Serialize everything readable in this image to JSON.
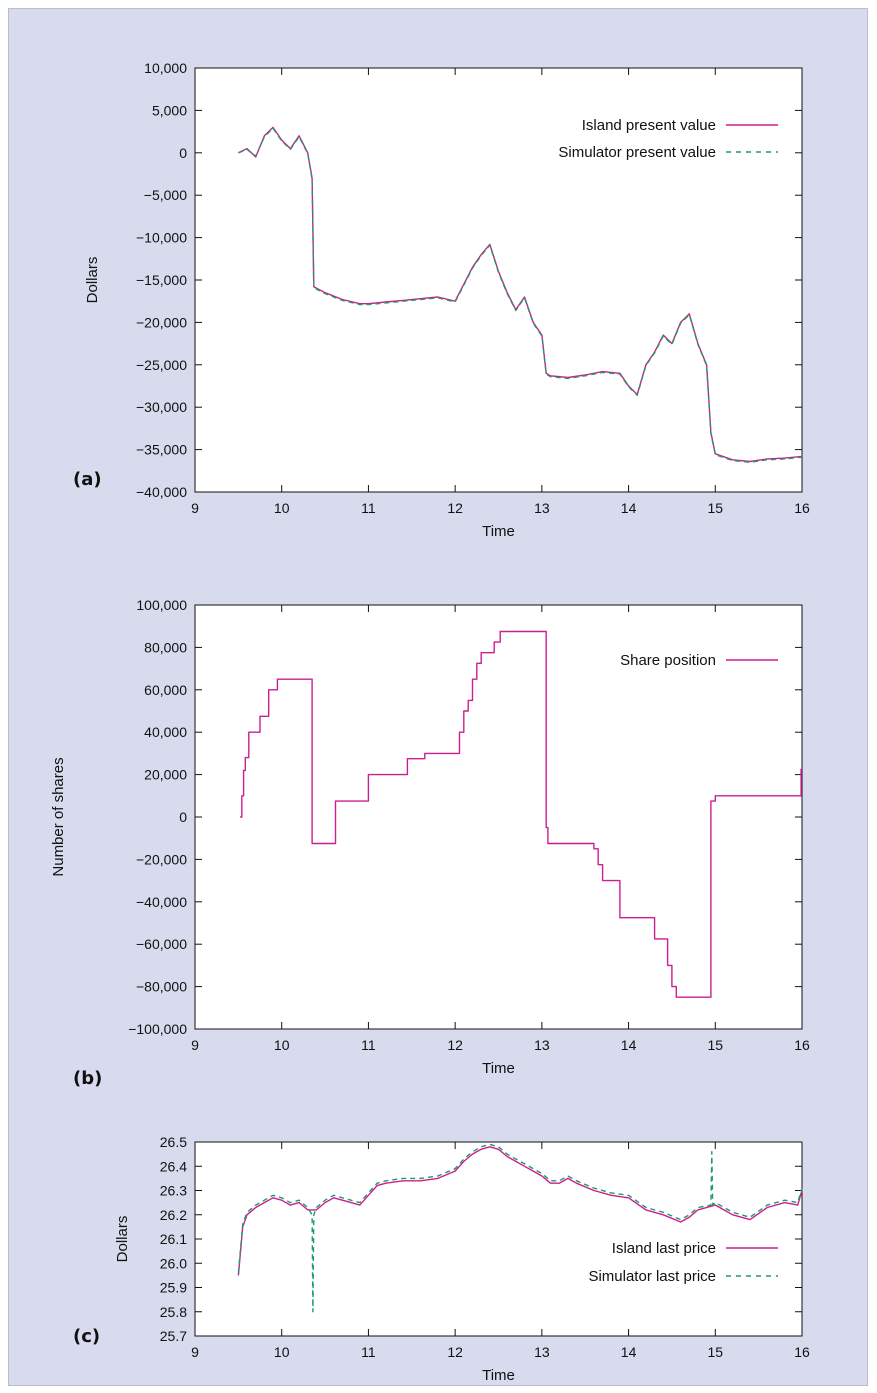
{
  "colors": {
    "island": "#cc1f8f",
    "simulator": "#1f9a6a",
    "frame_bg": "#d8dbee"
  },
  "panels": [
    {
      "letter": "(a)"
    },
    {
      "letter": "(b)"
    },
    {
      "letter": "(c)"
    }
  ],
  "chart_data": [
    {
      "type": "line",
      "title": "",
      "xlabel": "Time",
      "ylabel": "Dollars",
      "xlim": [
        9,
        16
      ],
      "ylim": [
        -40000,
        10000
      ],
      "xticks": [
        9,
        10,
        11,
        12,
        13,
        14,
        15,
        16
      ],
      "xtick_labels": [
        "9",
        "10",
        "11",
        "12",
        "13",
        "14",
        "15",
        "16"
      ],
      "yticks": [
        10000,
        5000,
        0,
        -5000,
        -10000,
        -15000,
        -20000,
        -25000,
        -30000,
        -35000,
        -40000
      ],
      "ytick_labels": [
        "10,000",
        "5,000",
        "0",
        "−5,000",
        "−10,000",
        "−15,000",
        "−20,000",
        "−25,000",
        "−30,000",
        "−35,000",
        "−40,000"
      ],
      "legend_position": "top-right",
      "series": [
        {
          "name": "Island present value",
          "style": "solid",
          "x": [
            9.5,
            9.6,
            9.7,
            9.8,
            9.9,
            10.0,
            10.1,
            10.2,
            10.3,
            10.35,
            10.37,
            10.5,
            10.7,
            10.9,
            11.0,
            11.2,
            11.4,
            11.6,
            11.8,
            12.0,
            12.1,
            12.2,
            12.3,
            12.4,
            12.5,
            12.6,
            12.7,
            12.8,
            12.9,
            13.0,
            13.05,
            13.1,
            13.3,
            13.5,
            13.7,
            13.9,
            14.0,
            14.1,
            14.2,
            14.3,
            14.4,
            14.5,
            14.6,
            14.7,
            14.8,
            14.9,
            14.95,
            15.0,
            15.2,
            15.4,
            15.6,
            15.8,
            16.0
          ],
          "y": [
            0,
            500,
            -500,
            2000,
            3000,
            1500,
            500,
            2000,
            0,
            -3000,
            -15800,
            -16500,
            -17300,
            -17800,
            -17800,
            -17600,
            -17400,
            -17200,
            -17000,
            -17500,
            -15500,
            -13500,
            -12000,
            -10800,
            -14000,
            -16500,
            -18500,
            -17000,
            -20000,
            -21500,
            -26000,
            -26300,
            -26500,
            -26200,
            -25800,
            -26000,
            -27500,
            -28500,
            -25000,
            -23500,
            -21500,
            -22500,
            -20000,
            -19000,
            -22500,
            -25000,
            -33000,
            -35500,
            -36200,
            -36400,
            -36100,
            -36000,
            -35800
          ]
        },
        {
          "name": "Simulator present value",
          "style": "dashed",
          "x": [
            9.5,
            9.6,
            9.7,
            9.8,
            9.9,
            10.0,
            10.1,
            10.2,
            10.3,
            10.35,
            10.37,
            10.5,
            10.7,
            10.9,
            11.0,
            11.2,
            11.4,
            11.6,
            11.8,
            12.0,
            12.1,
            12.2,
            12.3,
            12.4,
            12.5,
            12.6,
            12.7,
            12.8,
            12.9,
            13.0,
            13.05,
            13.1,
            13.3,
            13.5,
            13.7,
            13.9,
            14.0,
            14.1,
            14.2,
            14.3,
            14.4,
            14.5,
            14.6,
            14.7,
            14.8,
            14.9,
            14.95,
            15.0,
            15.2,
            15.4,
            15.6,
            15.8,
            16.0
          ],
          "y": [
            0,
            400,
            -400,
            1900,
            2900,
            1400,
            400,
            1900,
            -100,
            -3100,
            -15900,
            -16600,
            -17400,
            -17900,
            -17900,
            -17700,
            -17500,
            -17300,
            -17100,
            -17600,
            -15600,
            -13600,
            -12100,
            -10900,
            -14100,
            -16600,
            -18600,
            -17100,
            -20100,
            -21600,
            -26100,
            -26400,
            -26600,
            -26300,
            -25900,
            -26100,
            -27600,
            -28600,
            -25100,
            -23600,
            -21600,
            -22600,
            -20100,
            -19100,
            -22600,
            -25100,
            -33100,
            -35600,
            -36300,
            -36500,
            -36200,
            -36100,
            -35900
          ]
        }
      ]
    },
    {
      "type": "line",
      "title": "",
      "xlabel": "Time",
      "ylabel": "Number of shares",
      "xlim": [
        9,
        16
      ],
      "ylim": [
        -100000,
        100000
      ],
      "xticks": [
        9,
        10,
        11,
        12,
        13,
        14,
        15,
        16
      ],
      "xtick_labels": [
        "9",
        "10",
        "11",
        "12",
        "13",
        "14",
        "15",
        "16"
      ],
      "yticks": [
        100000,
        80000,
        60000,
        40000,
        20000,
        0,
        -20000,
        -40000,
        -60000,
        -80000,
        -100000
      ],
      "ytick_labels": [
        "100,000",
        "80,000",
        "60,000",
        "40,000",
        "20,000",
        "0",
        "−20,000",
        "−40,000",
        "−60,000",
        "−80,000",
        "−100,000"
      ],
      "legend_position": "top-right",
      "series": [
        {
          "name": "Share position",
          "style": "solid",
          "step": true,
          "x": [
            9.52,
            9.54,
            9.56,
            9.58,
            9.62,
            9.75,
            9.85,
            9.95,
            10.35,
            10.62,
            11.0,
            11.45,
            11.65,
            12.05,
            12.1,
            12.15,
            12.2,
            12.25,
            12.3,
            12.45,
            12.52,
            13.05,
            13.07,
            13.1,
            13.6,
            13.65,
            13.7,
            13.9,
            14.3,
            14.45,
            14.5,
            14.55,
            14.95,
            15.0,
            15.1,
            15.99,
            16.0
          ],
          "y": [
            0,
            10000,
            22000,
            28000,
            40000,
            47500,
            60000,
            65000,
            -12500,
            7500,
            20000,
            27500,
            30000,
            40000,
            50000,
            55000,
            65000,
            72500,
            77500,
            82500,
            87500,
            -5000,
            -12500,
            -12500,
            -15000,
            -22500,
            -30000,
            -47500,
            -57500,
            -70000,
            -80000,
            -85000,
            7500,
            10000,
            10000,
            22500,
            22500
          ]
        }
      ]
    },
    {
      "type": "line",
      "title": "",
      "xlabel": "Time",
      "ylabel": "Dollars",
      "xlim": [
        9,
        16
      ],
      "ylim": [
        25.7,
        26.5
      ],
      "xticks": [
        9,
        10,
        11,
        12,
        13,
        14,
        15,
        16
      ],
      "xtick_labels": [
        "9",
        "10",
        "11",
        "12",
        "13",
        "14",
        "15",
        "16"
      ],
      "yticks": [
        26.5,
        26.4,
        26.3,
        26.2,
        26.1,
        26.0,
        25.9,
        25.8,
        25.7
      ],
      "ytick_labels": [
        "26.5",
        "26.4",
        "26.3",
        "26.2",
        "26.1",
        "26.0",
        "25.9",
        "25.8",
        "25.7"
      ],
      "legend_position": "bottom-right",
      "series": [
        {
          "name": "Island last price",
          "style": "solid",
          "x": [
            9.5,
            9.55,
            9.6,
            9.7,
            9.8,
            9.9,
            10.0,
            10.1,
            10.2,
            10.3,
            10.4,
            10.5,
            10.6,
            10.7,
            10.8,
            10.9,
            11.0,
            11.1,
            11.2,
            11.4,
            11.6,
            11.8,
            12.0,
            12.1,
            12.2,
            12.3,
            12.4,
            12.5,
            12.6,
            12.7,
            12.8,
            12.9,
            13.0,
            13.1,
            13.2,
            13.3,
            13.4,
            13.6,
            13.8,
            14.0,
            14.2,
            14.4,
            14.6,
            14.7,
            14.8,
            15.0,
            15.1,
            15.2,
            15.4,
            15.6,
            15.8,
            15.95,
            16.0
          ],
          "y": [
            25.95,
            26.15,
            26.2,
            26.23,
            26.25,
            26.27,
            26.26,
            26.24,
            26.25,
            26.22,
            26.22,
            26.25,
            26.27,
            26.26,
            26.25,
            26.24,
            26.28,
            26.32,
            26.33,
            26.34,
            26.34,
            26.35,
            26.38,
            26.42,
            26.45,
            26.47,
            26.48,
            26.47,
            26.44,
            26.42,
            26.4,
            26.38,
            26.36,
            26.33,
            26.33,
            26.35,
            26.33,
            26.3,
            26.28,
            26.27,
            26.22,
            26.2,
            26.17,
            26.19,
            26.22,
            26.24,
            26.22,
            26.2,
            26.18,
            26.23,
            26.25,
            26.24,
            26.3
          ]
        },
        {
          "name": "Simulator last price",
          "style": "dashed",
          "x": [
            9.5,
            9.55,
            9.6,
            9.7,
            9.8,
            9.9,
            10.0,
            10.1,
            10.2,
            10.3,
            10.35,
            10.36,
            10.37,
            10.4,
            10.5,
            10.6,
            10.7,
            10.8,
            10.9,
            11.0,
            11.1,
            11.2,
            11.4,
            11.6,
            11.8,
            12.0,
            12.1,
            12.2,
            12.3,
            12.4,
            12.5,
            12.6,
            12.7,
            12.8,
            12.9,
            13.0,
            13.1,
            13.2,
            13.3,
            13.4,
            13.6,
            13.8,
            14.0,
            14.2,
            14.4,
            14.6,
            14.7,
            14.8,
            14.95,
            14.96,
            14.97,
            15.0,
            15.1,
            15.2,
            15.4,
            15.6,
            15.8,
            15.95,
            16.0
          ],
          "y": [
            25.96,
            26.16,
            26.21,
            26.24,
            26.26,
            26.28,
            26.27,
            26.25,
            26.26,
            26.23,
            26.2,
            25.8,
            26.2,
            26.23,
            26.26,
            26.28,
            26.27,
            26.26,
            26.25,
            26.29,
            26.33,
            26.34,
            26.35,
            26.35,
            26.36,
            26.39,
            26.43,
            26.46,
            26.48,
            26.49,
            26.48,
            26.45,
            26.43,
            26.41,
            26.39,
            26.37,
            26.34,
            26.34,
            26.36,
            26.34,
            26.31,
            26.29,
            26.28,
            26.23,
            26.21,
            26.18,
            26.2,
            26.23,
            26.24,
            26.46,
            26.24,
            26.25,
            26.23,
            26.21,
            26.19,
            26.24,
            26.26,
            26.25,
            26.31
          ]
        }
      ]
    }
  ]
}
